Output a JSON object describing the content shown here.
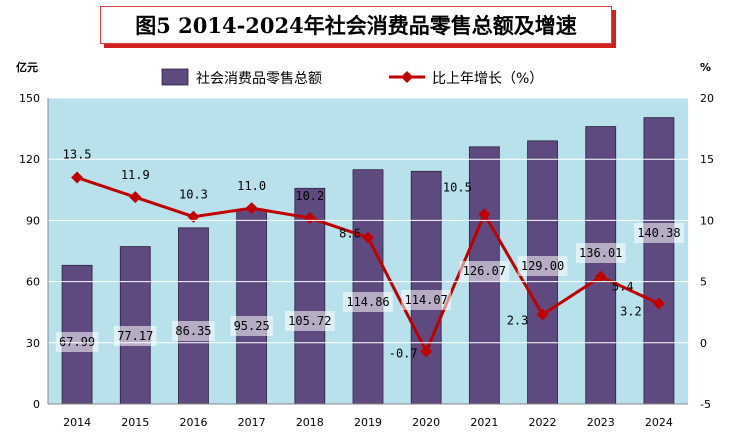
{
  "title": "图5  2014-2024年社会消费品零售总额及增速",
  "chart_data": {
    "type": "bar+line",
    "categories": [
      "2014",
      "2015",
      "2016",
      "2017",
      "2018",
      "2019",
      "2020",
      "2021",
      "2022",
      "2023",
      "2024"
    ],
    "series": [
      {
        "name": "社会消费品零售总额",
        "type": "bar",
        "axis": "left",
        "values": [
          67.99,
          77.17,
          86.35,
          95.25,
          105.72,
          114.86,
          114.07,
          126.07,
          129.0,
          136.01,
          140.38
        ],
        "labels": [
          "67.99",
          "77.17",
          "86.35",
          "95.25",
          "105.72",
          "114.86",
          "114.07",
          "126.07",
          "129.00",
          "136.01",
          "140.38"
        ],
        "color": "#5e4a7e"
      },
      {
        "name": "比上年增长（%）",
        "type": "line",
        "axis": "right",
        "values": [
          13.5,
          11.9,
          10.3,
          11.0,
          10.2,
          8.6,
          -0.7,
          10.5,
          2.3,
          5.4,
          3.2
        ],
        "labels": [
          "13.5",
          "11.9",
          "10.3",
          "11.0",
          "10.2",
          "8.6",
          "-0.7",
          "10.5",
          "2.3",
          "5.4",
          "3.2"
        ],
        "color": "#c00000"
      }
    ],
    "left_axis": {
      "unit": "亿元",
      "min": 0,
      "max": 150,
      "ticks": [
        "0",
        "30",
        "60",
        "90",
        "120",
        "150"
      ]
    },
    "right_axis": {
      "unit": "%",
      "min": -5,
      "max": 20,
      "ticks": [
        "-5",
        "0",
        "5",
        "10",
        "15",
        "20"
      ]
    },
    "legend_position": "top",
    "plot_background": "#b8e1ec"
  }
}
